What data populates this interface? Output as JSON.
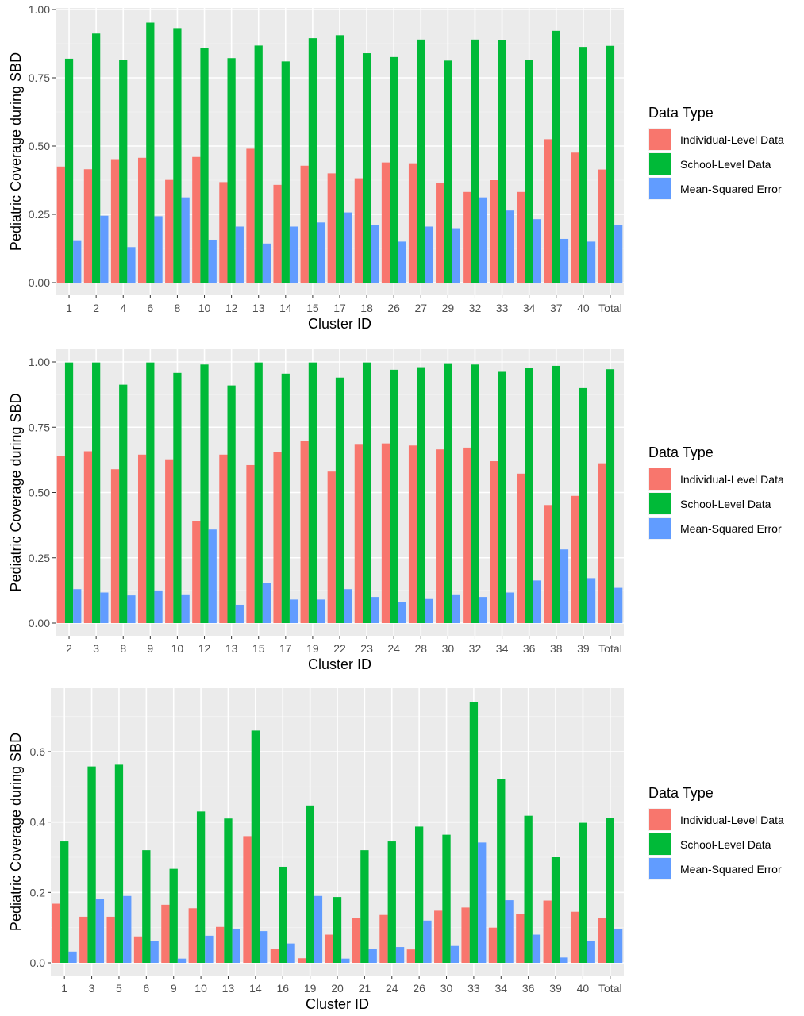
{
  "legend_title": "Data Type",
  "legend_items": [
    {
      "label": "Individual-Level Data",
      "color": "#F8766D"
    },
    {
      "label": "School-Level Data",
      "color": "#00BA38"
    },
    {
      "label": "Mean-Squared Error",
      "color": "#619CFF"
    }
  ],
  "chart_data": [
    {
      "type": "bar",
      "xlabel": "Cluster ID",
      "ylabel": "Pediatric Coverage during SBD",
      "ylim": [
        0,
        1
      ],
      "yticks": [
        "0.00",
        "0.25",
        "0.50",
        "0.75",
        "1.00"
      ],
      "legend_position": "right",
      "grid": true,
      "categories": [
        "1",
        "2",
        "4",
        "6",
        "8",
        "10",
        "12",
        "13",
        "14",
        "15",
        "17",
        "18",
        "26",
        "27",
        "29",
        "32",
        "33",
        "34",
        "37",
        "40",
        "Total"
      ],
      "series": [
        {
          "name": "Individual-Level Data",
          "values": [
            0.425,
            0.415,
            0.452,
            0.457,
            0.376,
            0.46,
            0.368,
            0.49,
            0.358,
            0.428,
            0.4,
            0.382,
            0.44,
            0.437,
            0.366,
            0.332,
            0.375,
            0.332,
            0.525,
            0.476,
            0.414
          ]
        },
        {
          "name": "School-Level Data",
          "values": [
            0.82,
            0.912,
            0.814,
            0.952,
            0.932,
            0.858,
            0.822,
            0.868,
            0.81,
            0.895,
            0.906,
            0.84,
            0.826,
            0.89,
            0.813,
            0.89,
            0.887,
            0.815,
            0.922,
            0.863,
            0.867
          ]
        },
        {
          "name": "Mean-Squared Error",
          "values": [
            0.155,
            0.245,
            0.13,
            0.243,
            0.312,
            0.157,
            0.205,
            0.143,
            0.205,
            0.22,
            0.257,
            0.211,
            0.15,
            0.205,
            0.199,
            0.312,
            0.264,
            0.232,
            0.16,
            0.15,
            0.21
          ]
        }
      ]
    },
    {
      "type": "bar",
      "xlabel": "Cluster ID",
      "ylabel": "Pediatric Coverage during SBD",
      "ylim": [
        0,
        1
      ],
      "yticks": [
        "0.00",
        "0.25",
        "0.50",
        "0.75",
        "1.00"
      ],
      "legend_position": "right",
      "grid": true,
      "categories": [
        "2",
        "3",
        "8",
        "9",
        "10",
        "12",
        "13",
        "15",
        "17",
        "19",
        "22",
        "23",
        "24",
        "28",
        "30",
        "32",
        "34",
        "36",
        "38",
        "39",
        "Total"
      ],
      "series": [
        {
          "name": "Individual-Level Data",
          "values": [
            0.64,
            0.658,
            0.589,
            0.645,
            0.627,
            0.392,
            0.645,
            0.605,
            0.655,
            0.697,
            0.58,
            0.683,
            0.688,
            0.68,
            0.665,
            0.672,
            0.62,
            0.572,
            0.452,
            0.487,
            0.612
          ]
        },
        {
          "name": "School-Level Data",
          "values": [
            0.998,
            0.998,
            0.913,
            0.998,
            0.958,
            0.99,
            0.91,
            0.998,
            0.955,
            0.998,
            0.94,
            0.998,
            0.97,
            0.98,
            0.995,
            0.99,
            0.962,
            0.977,
            0.985,
            0.9,
            0.972
          ]
        },
        {
          "name": "Mean-Squared Error",
          "values": [
            0.13,
            0.117,
            0.106,
            0.125,
            0.11,
            0.358,
            0.07,
            0.155,
            0.09,
            0.09,
            0.13,
            0.1,
            0.08,
            0.092,
            0.11,
            0.1,
            0.117,
            0.163,
            0.282,
            0.172,
            0.135
          ]
        }
      ]
    },
    {
      "type": "bar",
      "xlabel": "Cluster ID",
      "ylabel": "Pediatric Coverage during SBD",
      "ylim": [
        -0.0175,
        0.7725
      ],
      "yticks": [
        "0.0",
        "0.2",
        "0.4",
        "0.6"
      ],
      "legend_position": "right",
      "grid": true,
      "categories": [
        "1",
        "3",
        "5",
        "6",
        "9",
        "10",
        "13",
        "14",
        "16",
        "19",
        "20",
        "21",
        "24",
        "26",
        "30",
        "33",
        "34",
        "36",
        "39",
        "40",
        "Total"
      ],
      "series": [
        {
          "name": "Individual-Level Data",
          "values": [
            0.168,
            0.131,
            0.131,
            0.075,
            0.165,
            0.155,
            0.102,
            0.36,
            0.04,
            0.013,
            0.08,
            0.128,
            0.136,
            0.038,
            0.148,
            0.157,
            0.1,
            0.138,
            0.177,
            0.145,
            0.128
          ]
        },
        {
          "name": "School-Level Data",
          "values": [
            0.345,
            0.558,
            0.563,
            0.32,
            0.267,
            0.43,
            0.41,
            0.66,
            0.273,
            0.447,
            0.187,
            0.32,
            0.345,
            0.387,
            0.364,
            0.74,
            0.522,
            0.418,
            0.3,
            0.398,
            0.412
          ]
        },
        {
          "name": "Mean-Squared Error",
          "values": [
            0.032,
            0.182,
            0.19,
            0.062,
            0.012,
            0.077,
            0.095,
            0.09,
            0.055,
            0.19,
            0.012,
            0.04,
            0.045,
            0.12,
            0.048,
            0.342,
            0.178,
            0.08,
            0.015,
            0.063,
            0.097
          ]
        }
      ]
    }
  ]
}
